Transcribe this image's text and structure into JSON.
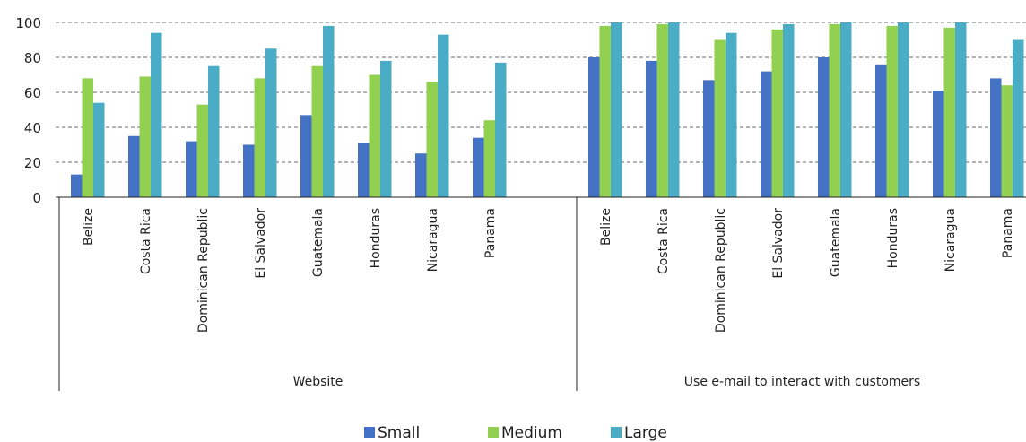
{
  "chart_data": {
    "type": "bar",
    "title": "",
    "ylabel": "",
    "ylim": [
      0,
      100
    ],
    "yticks": [
      0,
      20,
      40,
      60,
      80,
      100
    ],
    "grid": true,
    "legend_position": "bottom-center",
    "groups": [
      {
        "label": "Website",
        "categories": [
          "Belize",
          "Costa Rica",
          "Dominican Republic",
          "El Salvador",
          "Guatemala",
          "Honduras",
          "Nicaragua",
          "Panama"
        ],
        "series": [
          {
            "name": "Small",
            "values": [
              13,
              35,
              32,
              30,
              47,
              31,
              25,
              34
            ]
          },
          {
            "name": "Medium",
            "values": [
              68,
              69,
              53,
              68,
              75,
              70,
              66,
              44
            ]
          },
          {
            "name": "Large",
            "values": [
              54,
              94,
              75,
              85,
              98,
              78,
              93,
              77
            ]
          }
        ]
      },
      {
        "label": "Use e-mail to interact with customers",
        "categories": [
          "Belize",
          "Costa Rica",
          "Dominican Republic",
          "El Salvador",
          "Guatemala",
          "Honduras",
          "Nicaragua",
          "Panama"
        ],
        "series": [
          {
            "name": "Small",
            "values": [
              80,
              78,
              67,
              72,
              80,
              76,
              61,
              68
            ]
          },
          {
            "name": "Medium",
            "values": [
              98,
              99,
              90,
              96,
              99,
              98,
              97,
              64
            ]
          },
          {
            "name": "Large",
            "values": [
              100,
              100,
              94,
              99,
              100,
              100,
              100,
              90
            ]
          }
        ]
      }
    ],
    "legend": [
      {
        "name": "Small",
        "color": "#4472c4"
      },
      {
        "name": "Medium",
        "color": "#92d050"
      },
      {
        "name": "Large",
        "color": "#4bacc6"
      }
    ]
  }
}
